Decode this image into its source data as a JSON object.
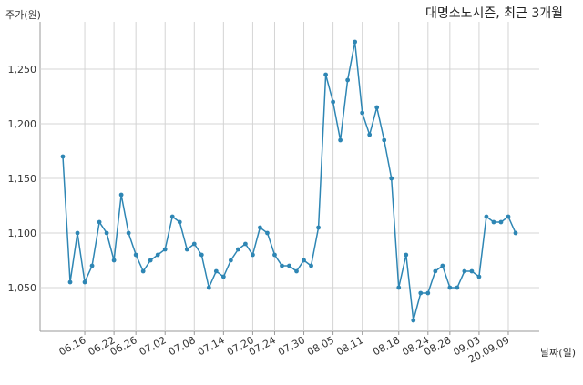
{
  "chart_data": {
    "type": "line",
    "title": "대명소노시즌, 최근 3개월",
    "ylabel": "주가(원)",
    "xlabel": "날짜(일)",
    "ylim": [
      1010,
      1285
    ],
    "y_ticks": [
      1050,
      1100,
      1150,
      1200,
      1250
    ],
    "y_tick_labels": [
      "1,050",
      "1,100",
      "1,150",
      "1,200",
      "1,250"
    ],
    "x_tick_labels": [
      "06.16",
      "06.22",
      "06.26",
      "07.02",
      "07.08",
      "07.14",
      "07.20",
      "07.24",
      "07.30",
      "08.05",
      "08.11",
      "08.18",
      "08.24",
      "08.28",
      "09.03",
      "20.09.09"
    ],
    "x_tick_indices": [
      3,
      7,
      10,
      14,
      18,
      22,
      26,
      29,
      33,
      37,
      41,
      46,
      50,
      53,
      57,
      61
    ],
    "grid": true,
    "line_color": "#2e86b4",
    "series": [
      {
        "name": "",
        "values": [
          1170,
          1055,
          1100,
          1055,
          1070,
          1110,
          1100,
          1075,
          1135,
          1100,
          1080,
          1065,
          1075,
          1080,
          1085,
          1115,
          1110,
          1085,
          1090,
          1080,
          1050,
          1065,
          1060,
          1075,
          1085,
          1090,
          1080,
          1105,
          1100,
          1080,
          1070,
          1070,
          1065,
          1075,
          1070,
          1105,
          1245,
          1220,
          1185,
          1240,
          1275,
          1210,
          1190,
          1215,
          1185,
          1150,
          1050,
          1080,
          1020,
          1045,
          1045,
          1065,
          1070,
          1050,
          1050,
          1065,
          1065,
          1060,
          1115,
          1110,
          1110,
          1115,
          1100
        ]
      }
    ]
  }
}
